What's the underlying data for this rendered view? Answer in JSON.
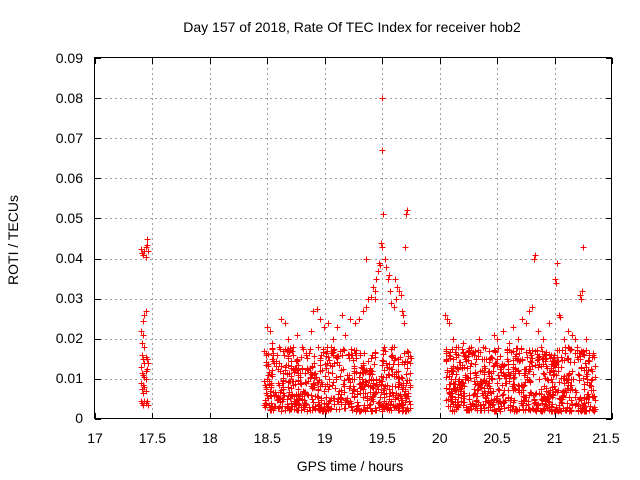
{
  "chart_data": {
    "type": "scatter",
    "title": "Day 157 of 2018, Rate Of TEC Index for receiver hob2",
    "xlabel": "GPS time / hours",
    "ylabel": "ROTI / TECUs",
    "xlim": [
      17,
      21.5
    ],
    "ylim": [
      0,
      0.09
    ],
    "x_ticks": [
      "17",
      "17.5",
      "18",
      "18.5",
      "19",
      "19.5",
      "20",
      "20.5",
      "21",
      "21.5"
    ],
    "y_ticks": [
      "0",
      "0.01",
      "0.02",
      "0.03",
      "0.04",
      "0.05",
      "0.06",
      "0.07",
      "0.08",
      "0.09"
    ],
    "grid": true,
    "marker": "+",
    "point_color": "#ff0000",
    "series": [
      {
        "name": "hob2",
        "points": [
          [
            17.4,
            0.0425
          ],
          [
            17.41,
            0.0415
          ],
          [
            17.42,
            0.041
          ],
          [
            17.43,
            0.042
          ],
          [
            17.44,
            0.0405
          ],
          [
            17.45,
            0.045
          ],
          [
            17.455,
            0.0435
          ],
          [
            17.46,
            0.042
          ],
          [
            17.44,
            0.043
          ],
          [
            17.41,
            0.019
          ],
          [
            17.42,
            0.0245
          ],
          [
            17.43,
            0.026
          ],
          [
            17.44,
            0.027
          ],
          [
            17.4,
            0.022
          ],
          [
            17.42,
            0.021
          ],
          [
            17.43,
            0.018
          ],
          [
            17.41,
            0.016
          ],
          [
            17.44,
            0.0155
          ],
          [
            17.42,
            0.015
          ],
          [
            17.43,
            0.014
          ],
          [
            17.4,
            0.013
          ],
          [
            17.44,
            0.012
          ],
          [
            17.41,
            0.0115
          ],
          [
            17.42,
            0.011
          ],
          [
            17.43,
            0.0105
          ],
          [
            17.44,
            0.01
          ],
          [
            17.4,
            0.009
          ],
          [
            17.42,
            0.0085
          ],
          [
            17.43,
            0.008
          ],
          [
            17.41,
            0.0075
          ],
          [
            17.44,
            0.007
          ],
          [
            17.42,
            0.0065
          ],
          [
            17.4,
            0.0045
          ],
          [
            17.41,
            0.004
          ],
          [
            17.42,
            0.0035
          ],
          [
            17.43,
            0.0045
          ],
          [
            17.44,
            0.004
          ],
          [
            17.45,
            0.0045
          ],
          [
            17.46,
            0.0035
          ],
          [
            17.45,
            0.0125
          ],
          [
            17.46,
            0.014
          ],
          [
            17.45,
            0.015
          ],
          [
            18.5,
            0.023
          ],
          [
            18.52,
            0.022
          ],
          [
            18.54,
            0.019
          ],
          [
            18.58,
            0.016
          ],
          [
            18.62,
            0.025
          ],
          [
            18.65,
            0.024
          ],
          [
            18.68,
            0.02
          ],
          [
            18.72,
            0.018
          ],
          [
            18.76,
            0.021
          ],
          [
            18.8,
            0.018
          ],
          [
            18.84,
            0.016
          ],
          [
            18.88,
            0.022
          ],
          [
            18.9,
            0.027
          ],
          [
            18.93,
            0.0275
          ],
          [
            18.96,
            0.025
          ],
          [
            18.99,
            0.023
          ],
          [
            19.03,
            0.024
          ],
          [
            19.07,
            0.02
          ],
          [
            19.11,
            0.023
          ],
          [
            19.15,
            0.026
          ],
          [
            19.18,
            0.021
          ],
          [
            19.22,
            0.025
          ],
          [
            19.26,
            0.024
          ],
          [
            19.3,
            0.025
          ],
          [
            19.33,
            0.027
          ],
          [
            19.36,
            0.028
          ],
          [
            19.38,
            0.03
          ],
          [
            19.4,
            0.0305
          ],
          [
            19.42,
            0.033
          ],
          [
            19.44,
            0.032
          ],
          [
            19.45,
            0.035
          ],
          [
            19.46,
            0.037
          ],
          [
            19.47,
            0.039
          ],
          [
            19.48,
            0.0385
          ],
          [
            19.49,
            0.044
          ],
          [
            19.5,
            0.043
          ],
          [
            19.5,
            0.08
          ],
          [
            19.5,
            0.067
          ],
          [
            19.51,
            0.051
          ],
          [
            19.52,
            0.04
          ],
          [
            19.53,
            0.038
          ],
          [
            19.55,
            0.035
          ],
          [
            19.56,
            0.036
          ],
          [
            19.58,
            0.029
          ],
          [
            19.6,
            0.028
          ],
          [
            19.62,
            0.03
          ],
          [
            19.63,
            0.033
          ],
          [
            19.65,
            0.032
          ],
          [
            19.66,
            0.031
          ],
          [
            19.67,
            0.027
          ],
          [
            19.68,
            0.026
          ],
          [
            19.69,
            0.024
          ],
          [
            19.7,
            0.043
          ],
          [
            19.71,
            0.051
          ],
          [
            19.72,
            0.052
          ],
          [
            19.36,
            0.04
          ],
          [
            19.44,
            0.03
          ],
          [
            19.61,
            0.035
          ],
          [
            19.57,
            0.032
          ],
          [
            20.05,
            0.026
          ],
          [
            20.06,
            0.025
          ],
          [
            20.08,
            0.024
          ],
          [
            20.12,
            0.02
          ],
          [
            20.16,
            0.018
          ],
          [
            20.2,
            0.019
          ],
          [
            20.25,
            0.017
          ],
          [
            20.3,
            0.016
          ],
          [
            20.34,
            0.02
          ],
          [
            20.38,
            0.018
          ],
          [
            20.43,
            0.017
          ],
          [
            20.47,
            0.021
          ],
          [
            20.5,
            0.02
          ],
          [
            20.55,
            0.022
          ],
          [
            20.6,
            0.019
          ],
          [
            20.64,
            0.023
          ],
          [
            20.68,
            0.02
          ],
          [
            20.72,
            0.025
          ],
          [
            20.75,
            0.024
          ],
          [
            20.78,
            0.027
          ],
          [
            20.8,
            0.028
          ],
          [
            20.82,
            0.04
          ],
          [
            20.83,
            0.041
          ],
          [
            20.86,
            0.022
          ],
          [
            20.9,
            0.02
          ],
          [
            20.95,
            0.024
          ],
          [
            21.0,
            0.035
          ],
          [
            21.01,
            0.034
          ],
          [
            21.02,
            0.039
          ],
          [
            21.04,
            0.026
          ],
          [
            21.05,
            0.0255
          ],
          [
            21.08,
            0.02
          ],
          [
            21.12,
            0.022
          ],
          [
            21.15,
            0.021
          ],
          [
            21.18,
            0.02
          ],
          [
            21.22,
            0.031
          ],
          [
            21.23,
            0.03
          ],
          [
            21.24,
            0.032
          ],
          [
            21.25,
            0.043
          ],
          [
            21.27,
            0.02
          ],
          [
            21.3,
            0.016
          ],
          [
            21.33,
            0.012
          ]
        ],
        "dense_bands": [
          {
            "x": [
              18.47,
              19.75
            ],
            "y": [
              0.002,
              0.018
            ],
            "count": 700
          },
          {
            "x": [
              20.05,
              21.35
            ],
            "y": [
              0.002,
              0.018
            ],
            "count": 760
          }
        ]
      }
    ]
  }
}
